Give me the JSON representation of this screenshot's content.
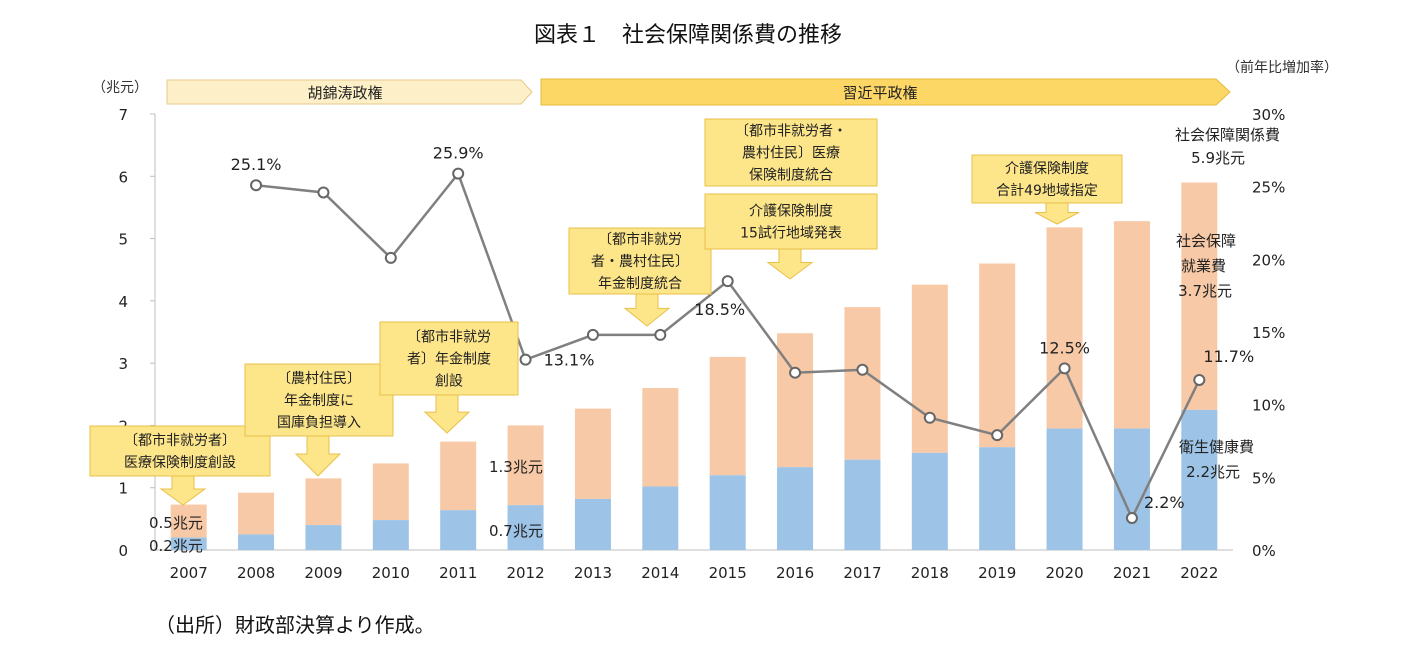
{
  "title": "図表１　社会保障関係費の推移",
  "source_note": "（出所）財政部決算より作成。",
  "left_unit": "（兆元）",
  "right_unit": "（前年比増加率）",
  "era_banners": [
    {
      "label": "胡錦涛政権"
    },
    {
      "label": "習近平政権"
    }
  ],
  "colors": {
    "social_employment": "#f8c9a6",
    "health": "#9dc3e6",
    "line": "#808080",
    "banner_hu": "#fdf0c8",
    "banner_xi": "#fdd766",
    "callout": "#fde58a",
    "callout_border": "#e8c14a"
  },
  "chart_data": {
    "type": "bar+line",
    "categories": [
      "2007",
      "2008",
      "2009",
      "2010",
      "2011",
      "2012",
      "2013",
      "2014",
      "2015",
      "2016",
      "2017",
      "2018",
      "2019",
      "2020",
      "2021",
      "2022"
    ],
    "series": [
      {
        "name": "衛生健康費",
        "axis": "left",
        "values": [
          0.2,
          0.25,
          0.4,
          0.48,
          0.64,
          0.72,
          0.82,
          1.02,
          1.2,
          1.33,
          1.45,
          1.56,
          1.65,
          1.95,
          1.95,
          2.25
        ]
      },
      {
        "name": "社会保障就業費",
        "axis": "left",
        "values": [
          0.53,
          0.67,
          0.75,
          0.91,
          1.1,
          1.28,
          1.45,
          1.58,
          1.9,
          2.15,
          2.45,
          2.7,
          2.95,
          3.23,
          3.33,
          3.65
        ]
      },
      {
        "name": "前年比増加率",
        "axis": "right",
        "type": "line",
        "x": [
          "2008",
          "2009",
          "2010",
          "2011",
          "2012",
          "2013",
          "2014",
          "2015",
          "2016",
          "2017",
          "2018",
          "2019",
          "2020",
          "2021",
          "2022"
        ],
        "values": [
          25.1,
          24.6,
          20.1,
          25.9,
          13.1,
          14.8,
          14.8,
          18.5,
          12.2,
          12.4,
          9.1,
          7.9,
          12.5,
          2.2,
          11.7
        ]
      }
    ],
    "yleft": {
      "min": 0,
      "max": 7,
      "ticks": [
        "0",
        "1",
        "2",
        "3",
        "4",
        "5",
        "6",
        "7"
      ]
    },
    "yright": {
      "min": 0,
      "max": 30,
      "ticks": [
        "0%",
        "5%",
        "10%",
        "15%",
        "20%",
        "25%",
        "30%"
      ]
    },
    "rate_labels": [
      {
        "year": "2008",
        "text": "25.1%"
      },
      {
        "year": "2011",
        "text": "25.9%"
      },
      {
        "year": "2012",
        "text": "13.1%"
      },
      {
        "year": "2015",
        "text": "18.5%"
      },
      {
        "year": "2020",
        "text": "12.5%"
      },
      {
        "year": "2021",
        "text": "2.2%"
      },
      {
        "year": "2022",
        "text": "11.7%"
      }
    ],
    "value_labels": {
      "v2007_total": "0.5兆元",
      "v2007_health": "0.2兆元",
      "v2012_total": "1.3兆元",
      "v2012_health": "0.7兆元",
      "v2022_total_name": "社会保障関係費",
      "v2022_total": "5.9兆元",
      "v2022_social_name1": "社会保障",
      "v2022_social_name2": "就業費",
      "v2022_social": "3.7兆元",
      "v2022_health_name": "衛生健康費",
      "v2022_health": "2.2兆元"
    },
    "annotations": [
      {
        "lines": [
          "〔都市非就労者〕",
          "医療保険制度創設"
        ]
      },
      {
        "lines": [
          "〔農村住民〕",
          "年金制度に",
          "国庫負担導入"
        ]
      },
      {
        "lines": [
          "〔都市非就労",
          "者〕年金制度",
          "創設"
        ]
      },
      {
        "lines": [
          "〔都市非就労",
          "者・農村住民〕",
          "年金制度統合"
        ]
      },
      {
        "lines": [
          "〔都市非就労者・",
          "農村住民〕医療",
          "保険制度統合"
        ]
      },
      {
        "lines": [
          "介護保険制度",
          "15試行地域発表"
        ]
      },
      {
        "lines": [
          "介護保険制度",
          "合計49地域指定"
        ]
      }
    ]
  }
}
